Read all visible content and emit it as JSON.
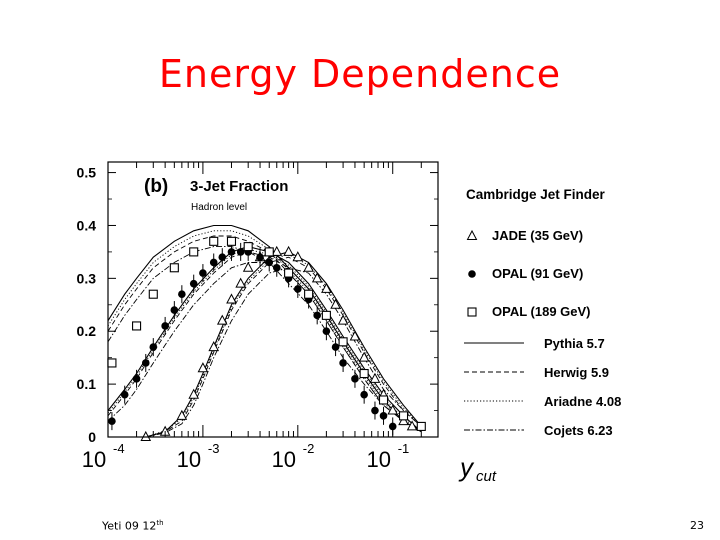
{
  "slide": {
    "title": "Energy Dependence",
    "footer_left": "Yeti 09 12",
    "footer_left_sup": "th",
    "page_number": "23"
  },
  "chart_data": {
    "type": "scatter",
    "panel_label": "(b)",
    "title": "3-Jet Fraction",
    "subtitle": "Hadron level",
    "legend_title": "Cambridge Jet Finder",
    "xlabel_main": "y",
    "xlabel_sub": "cut",
    "xscale": "log",
    "xlim": [
      0.0001,
      0.3
    ],
    "ylim": [
      0,
      0.52
    ],
    "x_ticks": [
      {
        "value": 0.0001,
        "base": "10",
        "exp": "-4"
      },
      {
        "value": 0.001,
        "base": "10",
        "exp": "-3"
      },
      {
        "value": 0.01,
        "base": "10",
        "exp": "-2"
      },
      {
        "value": 0.1,
        "base": "10",
        "exp": "-1"
      }
    ],
    "y_ticks": [
      0,
      0.1,
      0.2,
      0.3,
      0.4,
      0.5
    ],
    "y_tick_labels": [
      "0",
      "0.1",
      "0.2",
      "0.3",
      "0.4",
      "0.5"
    ],
    "series": [
      {
        "name": "JADE (35 GeV)",
        "marker": "triangle",
        "points": [
          [
            0.00025,
            0.0
          ],
          [
            0.0004,
            0.01
          ],
          [
            0.0006,
            0.04
          ],
          [
            0.0008,
            0.08
          ],
          [
            0.001,
            0.13
          ],
          [
            0.0013,
            0.17
          ],
          [
            0.0016,
            0.22
          ],
          [
            0.002,
            0.26
          ],
          [
            0.0025,
            0.29
          ],
          [
            0.003,
            0.32
          ],
          [
            0.004,
            0.34
          ],
          [
            0.005,
            0.35
          ],
          [
            0.006,
            0.35
          ],
          [
            0.008,
            0.35
          ],
          [
            0.01,
            0.34
          ],
          [
            0.013,
            0.32
          ],
          [
            0.016,
            0.3
          ],
          [
            0.02,
            0.28
          ],
          [
            0.025,
            0.25
          ],
          [
            0.03,
            0.22
          ],
          [
            0.04,
            0.19
          ],
          [
            0.05,
            0.15
          ],
          [
            0.065,
            0.11
          ],
          [
            0.08,
            0.08
          ],
          [
            0.1,
            0.05
          ],
          [
            0.13,
            0.03
          ],
          [
            0.16,
            0.02
          ]
        ]
      },
      {
        "name": "OPAL (91 GeV)",
        "marker": "circle",
        "points": [
          [
            0.00011,
            0.03
          ],
          [
            0.00015,
            0.08
          ],
          [
            0.0002,
            0.11
          ],
          [
            0.00025,
            0.14
          ],
          [
            0.0003,
            0.17
          ],
          [
            0.0004,
            0.21
          ],
          [
            0.0005,
            0.24
          ],
          [
            0.0006,
            0.27
          ],
          [
            0.0008,
            0.29
          ],
          [
            0.001,
            0.31
          ],
          [
            0.0013,
            0.33
          ],
          [
            0.0016,
            0.34
          ],
          [
            0.002,
            0.35
          ],
          [
            0.0025,
            0.35
          ],
          [
            0.003,
            0.35
          ],
          [
            0.004,
            0.34
          ],
          [
            0.005,
            0.33
          ],
          [
            0.006,
            0.32
          ],
          [
            0.008,
            0.3
          ],
          [
            0.01,
            0.28
          ],
          [
            0.013,
            0.26
          ],
          [
            0.016,
            0.23
          ],
          [
            0.02,
            0.2
          ],
          [
            0.025,
            0.17
          ],
          [
            0.03,
            0.14
          ],
          [
            0.04,
            0.11
          ],
          [
            0.05,
            0.08
          ],
          [
            0.065,
            0.05
          ],
          [
            0.08,
            0.04
          ],
          [
            0.1,
            0.02
          ]
        ]
      },
      {
        "name": "OPAL (189 GeV)",
        "marker": "square",
        "points": [
          [
            0.00011,
            0.14
          ],
          [
            0.0002,
            0.21
          ],
          [
            0.0003,
            0.27
          ],
          [
            0.0005,
            0.32
          ],
          [
            0.0008,
            0.35
          ],
          [
            0.0013,
            0.37
          ],
          [
            0.002,
            0.37
          ],
          [
            0.003,
            0.36
          ],
          [
            0.005,
            0.35
          ],
          [
            0.008,
            0.31
          ],
          [
            0.013,
            0.27
          ],
          [
            0.02,
            0.23
          ],
          [
            0.03,
            0.18
          ],
          [
            0.05,
            0.12
          ],
          [
            0.08,
            0.07
          ],
          [
            0.13,
            0.04
          ],
          [
            0.2,
            0.02
          ]
        ]
      }
    ],
    "curves": [
      {
        "name": "Pythia 5.7",
        "style": "solid"
      },
      {
        "name": "Herwig 5.9",
        "style": "dashed"
      },
      {
        "name": "Ariadne 4.08",
        "style": "dotted"
      },
      {
        "name": "Cojets 6.23",
        "style": "dashdot"
      }
    ],
    "curve_data": {
      "Pythia 5.7": {
        "low": [
          [
            0.0001,
            0.22
          ],
          [
            0.00015,
            0.27
          ],
          [
            0.0002,
            0.3
          ],
          [
            0.0003,
            0.34
          ],
          [
            0.0005,
            0.37
          ],
          [
            0.0008,
            0.39
          ],
          [
            0.0013,
            0.4
          ],
          [
            0.002,
            0.4
          ],
          [
            0.003,
            0.39
          ],
          [
            0.005,
            0.36
          ],
          [
            0.008,
            0.32
          ],
          [
            0.013,
            0.28
          ],
          [
            0.02,
            0.23
          ],
          [
            0.03,
            0.18
          ],
          [
            0.05,
            0.12
          ],
          [
            0.08,
            0.07
          ],
          [
            0.13,
            0.03
          ],
          [
            0.2,
            0.01
          ]
        ],
        "mid": [
          [
            0.0001,
            0.05
          ],
          [
            0.00015,
            0.09
          ],
          [
            0.0002,
            0.12
          ],
          [
            0.0003,
            0.17
          ],
          [
            0.0005,
            0.23
          ],
          [
            0.0008,
            0.28
          ],
          [
            0.0013,
            0.32
          ],
          [
            0.002,
            0.35
          ],
          [
            0.003,
            0.36
          ],
          [
            0.005,
            0.35
          ],
          [
            0.008,
            0.33
          ],
          [
            0.013,
            0.29
          ],
          [
            0.02,
            0.24
          ],
          [
            0.03,
            0.19
          ],
          [
            0.05,
            0.13
          ],
          [
            0.08,
            0.08
          ],
          [
            0.13,
            0.04
          ],
          [
            0.2,
            0.01
          ]
        ],
        "high": [
          [
            0.00025,
            0.0
          ],
          [
            0.0004,
            0.01
          ],
          [
            0.0006,
            0.04
          ],
          [
            0.0008,
            0.08
          ],
          [
            0.001,
            0.12
          ],
          [
            0.0013,
            0.17
          ],
          [
            0.002,
            0.25
          ],
          [
            0.003,
            0.3
          ],
          [
            0.005,
            0.34
          ],
          [
            0.008,
            0.35
          ],
          [
            0.013,
            0.33
          ],
          [
            0.02,
            0.29
          ],
          [
            0.03,
            0.24
          ],
          [
            0.05,
            0.17
          ],
          [
            0.08,
            0.11
          ],
          [
            0.13,
            0.06
          ],
          [
            0.2,
            0.02
          ]
        ]
      },
      "Herwig 5.9": {
        "low": [
          [
            0.0001,
            0.2
          ],
          [
            0.00015,
            0.25
          ],
          [
            0.0002,
            0.28
          ],
          [
            0.0003,
            0.32
          ],
          [
            0.0005,
            0.35
          ],
          [
            0.0008,
            0.37
          ],
          [
            0.0013,
            0.38
          ],
          [
            0.002,
            0.38
          ],
          [
            0.003,
            0.37
          ],
          [
            0.005,
            0.35
          ],
          [
            0.008,
            0.31
          ],
          [
            0.013,
            0.27
          ],
          [
            0.02,
            0.22
          ],
          [
            0.03,
            0.17
          ],
          [
            0.05,
            0.11
          ],
          [
            0.08,
            0.06
          ],
          [
            0.13,
            0.03
          ],
          [
            0.2,
            0.01
          ]
        ],
        "mid": [
          [
            0.0001,
            0.04
          ],
          [
            0.00015,
            0.08
          ],
          [
            0.0002,
            0.11
          ],
          [
            0.0003,
            0.16
          ],
          [
            0.0005,
            0.22
          ],
          [
            0.0008,
            0.27
          ],
          [
            0.0013,
            0.31
          ],
          [
            0.002,
            0.34
          ],
          [
            0.003,
            0.35
          ],
          [
            0.005,
            0.34
          ],
          [
            0.008,
            0.32
          ],
          [
            0.013,
            0.28
          ],
          [
            0.02,
            0.23
          ],
          [
            0.03,
            0.18
          ],
          [
            0.05,
            0.12
          ],
          [
            0.08,
            0.07
          ],
          [
            0.13,
            0.03
          ],
          [
            0.2,
            0.01
          ]
        ],
        "high": [
          [
            0.00025,
            0.0
          ],
          [
            0.0004,
            0.01
          ],
          [
            0.0006,
            0.03
          ],
          [
            0.0008,
            0.07
          ],
          [
            0.001,
            0.11
          ],
          [
            0.0013,
            0.16
          ],
          [
            0.002,
            0.24
          ],
          [
            0.003,
            0.29
          ],
          [
            0.005,
            0.33
          ],
          [
            0.008,
            0.34
          ],
          [
            0.013,
            0.32
          ],
          [
            0.02,
            0.28
          ],
          [
            0.03,
            0.23
          ],
          [
            0.05,
            0.16
          ],
          [
            0.08,
            0.1
          ],
          [
            0.13,
            0.05
          ],
          [
            0.2,
            0.02
          ]
        ]
      },
      "Ariadne 4.08": {
        "low": [
          [
            0.0001,
            0.21
          ],
          [
            0.00015,
            0.26
          ],
          [
            0.0002,
            0.29
          ],
          [
            0.0003,
            0.33
          ],
          [
            0.0005,
            0.36
          ],
          [
            0.0008,
            0.38
          ],
          [
            0.0013,
            0.39
          ],
          [
            0.002,
            0.39
          ],
          [
            0.003,
            0.38
          ],
          [
            0.005,
            0.355
          ],
          [
            0.008,
            0.315
          ],
          [
            0.013,
            0.275
          ],
          [
            0.02,
            0.225
          ],
          [
            0.03,
            0.175
          ],
          [
            0.05,
            0.115
          ],
          [
            0.08,
            0.065
          ],
          [
            0.13,
            0.03
          ],
          [
            0.2,
            0.01
          ]
        ],
        "mid": [
          [
            0.0001,
            0.045
          ],
          [
            0.00015,
            0.085
          ],
          [
            0.0002,
            0.115
          ],
          [
            0.0003,
            0.165
          ],
          [
            0.0005,
            0.225
          ],
          [
            0.0008,
            0.275
          ],
          [
            0.0013,
            0.315
          ],
          [
            0.002,
            0.345
          ],
          [
            0.003,
            0.355
          ],
          [
            0.005,
            0.345
          ],
          [
            0.008,
            0.325
          ],
          [
            0.013,
            0.285
          ],
          [
            0.02,
            0.235
          ],
          [
            0.03,
            0.185
          ],
          [
            0.05,
            0.125
          ],
          [
            0.08,
            0.075
          ],
          [
            0.13,
            0.035
          ],
          [
            0.2,
            0.01
          ]
        ],
        "high": [
          [
            0.00025,
            0.0
          ],
          [
            0.0004,
            0.012
          ],
          [
            0.0006,
            0.035
          ],
          [
            0.0008,
            0.075
          ],
          [
            0.001,
            0.115
          ],
          [
            0.0013,
            0.165
          ],
          [
            0.002,
            0.245
          ],
          [
            0.003,
            0.295
          ],
          [
            0.005,
            0.335
          ],
          [
            0.008,
            0.345
          ],
          [
            0.013,
            0.325
          ],
          [
            0.02,
            0.285
          ],
          [
            0.03,
            0.235
          ],
          [
            0.05,
            0.165
          ],
          [
            0.08,
            0.105
          ],
          [
            0.13,
            0.055
          ],
          [
            0.2,
            0.02
          ]
        ]
      },
      "Cojets 6.23": {
        "low": [
          [
            0.0001,
            0.18
          ],
          [
            0.00015,
            0.23
          ],
          [
            0.0002,
            0.26
          ],
          [
            0.0003,
            0.3
          ],
          [
            0.0005,
            0.33
          ],
          [
            0.0008,
            0.35
          ],
          [
            0.0013,
            0.36
          ],
          [
            0.002,
            0.36
          ],
          [
            0.003,
            0.35
          ],
          [
            0.005,
            0.33
          ],
          [
            0.008,
            0.29
          ],
          [
            0.013,
            0.25
          ],
          [
            0.02,
            0.2
          ],
          [
            0.03,
            0.15
          ],
          [
            0.05,
            0.1
          ],
          [
            0.08,
            0.06
          ],
          [
            0.13,
            0.03
          ],
          [
            0.2,
            0.01
          ]
        ],
        "mid": [
          [
            0.0001,
            0.03
          ],
          [
            0.00015,
            0.06
          ],
          [
            0.0002,
            0.09
          ],
          [
            0.0003,
            0.14
          ],
          [
            0.0005,
            0.2
          ],
          [
            0.0008,
            0.25
          ],
          [
            0.0013,
            0.29
          ],
          [
            0.002,
            0.32
          ],
          [
            0.003,
            0.33
          ],
          [
            0.005,
            0.33
          ],
          [
            0.008,
            0.31
          ],
          [
            0.013,
            0.27
          ],
          [
            0.02,
            0.22
          ],
          [
            0.03,
            0.17
          ],
          [
            0.05,
            0.11
          ],
          [
            0.08,
            0.06
          ],
          [
            0.13,
            0.03
          ],
          [
            0.2,
            0.01
          ]
        ],
        "high": [
          [
            0.00025,
            0.0
          ],
          [
            0.0004,
            0.008
          ],
          [
            0.0006,
            0.025
          ],
          [
            0.0008,
            0.06
          ],
          [
            0.001,
            0.1
          ],
          [
            0.0013,
            0.15
          ],
          [
            0.002,
            0.22
          ],
          [
            0.003,
            0.27
          ],
          [
            0.005,
            0.31
          ],
          [
            0.008,
            0.32
          ],
          [
            0.013,
            0.31
          ],
          [
            0.02,
            0.27
          ],
          [
            0.03,
            0.22
          ],
          [
            0.05,
            0.15
          ],
          [
            0.08,
            0.09
          ],
          [
            0.13,
            0.05
          ],
          [
            0.2,
            0.02
          ]
        ]
      }
    }
  }
}
